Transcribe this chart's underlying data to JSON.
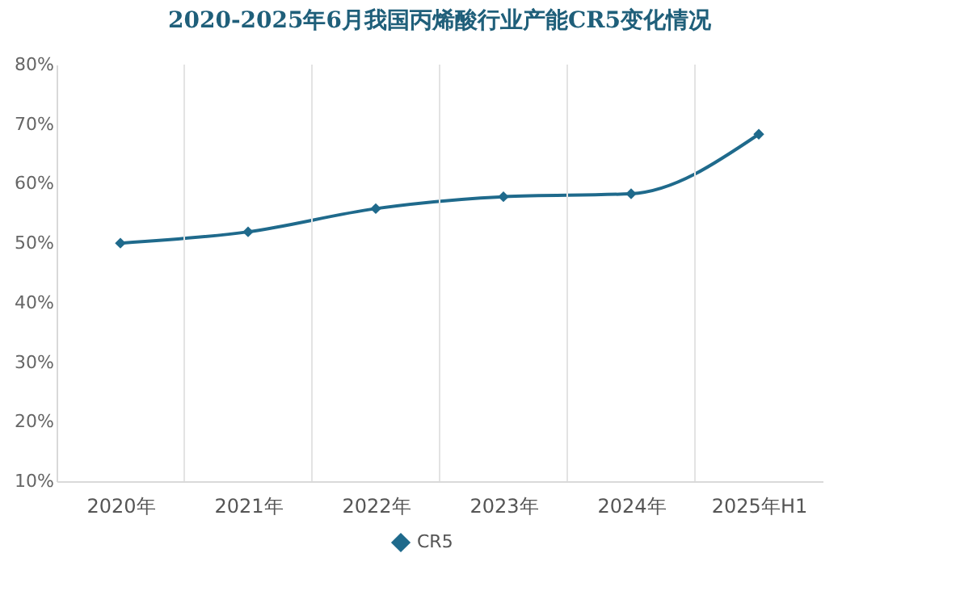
{
  "chart_data": {
    "type": "line",
    "title": "2020-2025年6月我国丙烯酸行业产能CR5变化情况",
    "categories": [
      "2020年",
      "2021年",
      "2022年",
      "2023年",
      "2024年",
      "2025年H1"
    ],
    "series": [
      {
        "name": "CR5",
        "color": "#1f6a8c",
        "values": [
          50.0,
          51.9,
          55.8,
          57.8,
          58.3,
          68.3
        ]
      }
    ],
    "ylim": [
      10,
      80
    ],
    "yticks": [
      {
        "value": 10,
        "label": "10%"
      },
      {
        "value": 20,
        "label": "20%"
      },
      {
        "value": 30,
        "label": "30%"
      },
      {
        "value": 40,
        "label": "40%"
      },
      {
        "value": 50,
        "label": "50%"
      },
      {
        "value": 60,
        "label": "60%"
      },
      {
        "value": 70,
        "label": "70%"
      },
      {
        "value": 80,
        "label": "80%"
      }
    ],
    "grid": "x",
    "legend": "bottom",
    "marker": "diamond",
    "line_style": "solid"
  }
}
